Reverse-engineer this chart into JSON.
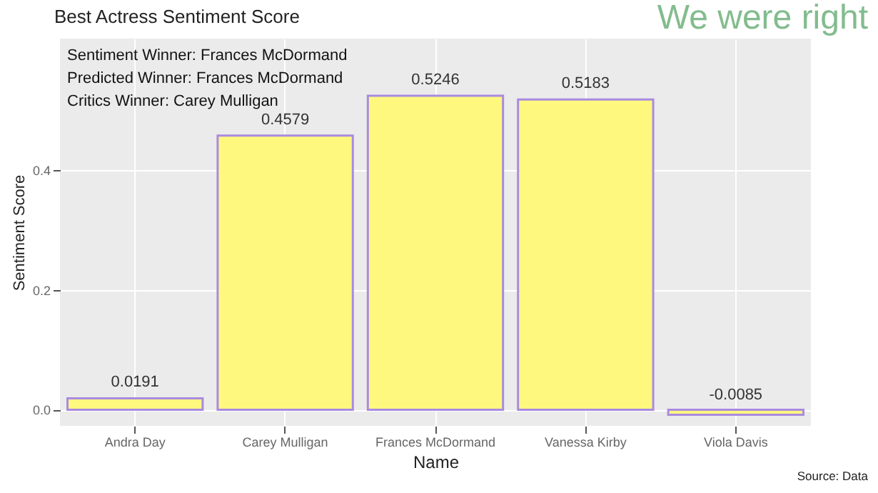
{
  "chart_data": {
    "type": "bar",
    "title": "Best Actress Sentiment Score",
    "xlabel": "Name",
    "ylabel": "Sentiment Score",
    "categories": [
      "Andra Day",
      "Carey Mulligan",
      "Frances McDormand",
      "Vanessa Kirby",
      "Viola Davis"
    ],
    "values": [
      0.0191,
      0.4579,
      0.5246,
      0.5183,
      -0.0085
    ],
    "color": "#fef87f",
    "ylim": [
      -0.027,
      0.62
    ],
    "yticks": [
      {
        "value": 0,
        "label": "0.0"
      },
      0.2,
      0.4
    ],
    "grid": true,
    "data_labels": true,
    "annotations": [
      "Sentiment Winner: Frances McDormand",
      "Predicted Winner: Frances McDormand",
      "Critics Winner: Carey Mulligan",
      "We were right",
      "Source: Data"
    ]
  }
}
